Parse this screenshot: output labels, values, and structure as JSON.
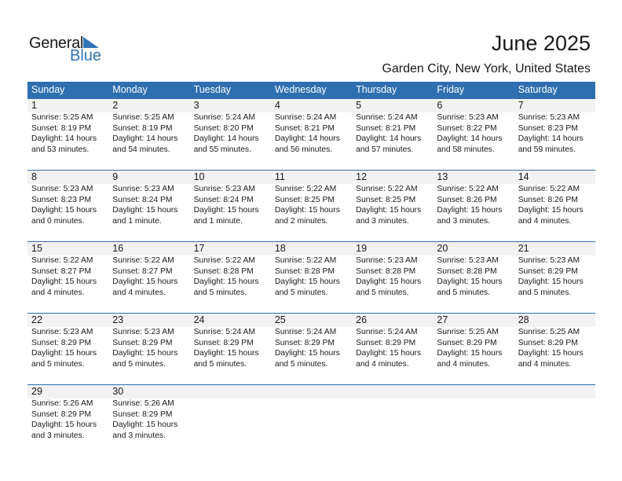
{
  "logo": {
    "word1": "General",
    "word2": "Blue"
  },
  "header": {
    "title": "June 2025",
    "location": "Garden City, New York, United States"
  },
  "colors": {
    "accent": "#2e6fb0",
    "band": "#f2f2f2"
  },
  "weekdays": [
    "Sunday",
    "Monday",
    "Tuesday",
    "Wednesday",
    "Thursday",
    "Friday",
    "Saturday"
  ],
  "weeks": [
    [
      {
        "day": "1",
        "sunrise": "Sunrise: 5:25 AM",
        "sunset": "Sunset: 8:19 PM",
        "daylight": "Daylight: 14 hours",
        "minutes": "and 53 minutes."
      },
      {
        "day": "2",
        "sunrise": "Sunrise: 5:25 AM",
        "sunset": "Sunset: 8:19 PM",
        "daylight": "Daylight: 14 hours",
        "minutes": "and 54 minutes."
      },
      {
        "day": "3",
        "sunrise": "Sunrise: 5:24 AM",
        "sunset": "Sunset: 8:20 PM",
        "daylight": "Daylight: 14 hours",
        "minutes": "and 55 minutes."
      },
      {
        "day": "4",
        "sunrise": "Sunrise: 5:24 AM",
        "sunset": "Sunset: 8:21 PM",
        "daylight": "Daylight: 14 hours",
        "minutes": "and 56 minutes."
      },
      {
        "day": "5",
        "sunrise": "Sunrise: 5:24 AM",
        "sunset": "Sunset: 8:21 PM",
        "daylight": "Daylight: 14 hours",
        "minutes": "and 57 minutes."
      },
      {
        "day": "6",
        "sunrise": "Sunrise: 5:23 AM",
        "sunset": "Sunset: 8:22 PM",
        "daylight": "Daylight: 14 hours",
        "minutes": "and 58 minutes."
      },
      {
        "day": "7",
        "sunrise": "Sunrise: 5:23 AM",
        "sunset": "Sunset: 8:23 PM",
        "daylight": "Daylight: 14 hours",
        "minutes": "and 59 minutes."
      }
    ],
    [
      {
        "day": "8",
        "sunrise": "Sunrise: 5:23 AM",
        "sunset": "Sunset: 8:23 PM",
        "daylight": "Daylight: 15 hours",
        "minutes": "and 0 minutes."
      },
      {
        "day": "9",
        "sunrise": "Sunrise: 5:23 AM",
        "sunset": "Sunset: 8:24 PM",
        "daylight": "Daylight: 15 hours",
        "minutes": "and 1 minute."
      },
      {
        "day": "10",
        "sunrise": "Sunrise: 5:23 AM",
        "sunset": "Sunset: 8:24 PM",
        "daylight": "Daylight: 15 hours",
        "minutes": "and 1 minute."
      },
      {
        "day": "11",
        "sunrise": "Sunrise: 5:22 AM",
        "sunset": "Sunset: 8:25 PM",
        "daylight": "Daylight: 15 hours",
        "minutes": "and 2 minutes."
      },
      {
        "day": "12",
        "sunrise": "Sunrise: 5:22 AM",
        "sunset": "Sunset: 8:25 PM",
        "daylight": "Daylight: 15 hours",
        "minutes": "and 3 minutes."
      },
      {
        "day": "13",
        "sunrise": "Sunrise: 5:22 AM",
        "sunset": "Sunset: 8:26 PM",
        "daylight": "Daylight: 15 hours",
        "minutes": "and 3 minutes."
      },
      {
        "day": "14",
        "sunrise": "Sunrise: 5:22 AM",
        "sunset": "Sunset: 8:26 PM",
        "daylight": "Daylight: 15 hours",
        "minutes": "and 4 minutes."
      }
    ],
    [
      {
        "day": "15",
        "sunrise": "Sunrise: 5:22 AM",
        "sunset": "Sunset: 8:27 PM",
        "daylight": "Daylight: 15 hours",
        "minutes": "and 4 minutes."
      },
      {
        "day": "16",
        "sunrise": "Sunrise: 5:22 AM",
        "sunset": "Sunset: 8:27 PM",
        "daylight": "Daylight: 15 hours",
        "minutes": "and 4 minutes."
      },
      {
        "day": "17",
        "sunrise": "Sunrise: 5:22 AM",
        "sunset": "Sunset: 8:28 PM",
        "daylight": "Daylight: 15 hours",
        "minutes": "and 5 minutes."
      },
      {
        "day": "18",
        "sunrise": "Sunrise: 5:22 AM",
        "sunset": "Sunset: 8:28 PM",
        "daylight": "Daylight: 15 hours",
        "minutes": "and 5 minutes."
      },
      {
        "day": "19",
        "sunrise": "Sunrise: 5:23 AM",
        "sunset": "Sunset: 8:28 PM",
        "daylight": "Daylight: 15 hours",
        "minutes": "and 5 minutes."
      },
      {
        "day": "20",
        "sunrise": "Sunrise: 5:23 AM",
        "sunset": "Sunset: 8:28 PM",
        "daylight": "Daylight: 15 hours",
        "minutes": "and 5 minutes."
      },
      {
        "day": "21",
        "sunrise": "Sunrise: 5:23 AM",
        "sunset": "Sunset: 8:29 PM",
        "daylight": "Daylight: 15 hours",
        "minutes": "and 5 minutes."
      }
    ],
    [
      {
        "day": "22",
        "sunrise": "Sunrise: 5:23 AM",
        "sunset": "Sunset: 8:29 PM",
        "daylight": "Daylight: 15 hours",
        "minutes": "and 5 minutes."
      },
      {
        "day": "23",
        "sunrise": "Sunrise: 5:23 AM",
        "sunset": "Sunset: 8:29 PM",
        "daylight": "Daylight: 15 hours",
        "minutes": "and 5 minutes."
      },
      {
        "day": "24",
        "sunrise": "Sunrise: 5:24 AM",
        "sunset": "Sunset: 8:29 PM",
        "daylight": "Daylight: 15 hours",
        "minutes": "and 5 minutes."
      },
      {
        "day": "25",
        "sunrise": "Sunrise: 5:24 AM",
        "sunset": "Sunset: 8:29 PM",
        "daylight": "Daylight: 15 hours",
        "minutes": "and 5 minutes."
      },
      {
        "day": "26",
        "sunrise": "Sunrise: 5:24 AM",
        "sunset": "Sunset: 8:29 PM",
        "daylight": "Daylight: 15 hours",
        "minutes": "and 4 minutes."
      },
      {
        "day": "27",
        "sunrise": "Sunrise: 5:25 AM",
        "sunset": "Sunset: 8:29 PM",
        "daylight": "Daylight: 15 hours",
        "minutes": "and 4 minutes."
      },
      {
        "day": "28",
        "sunrise": "Sunrise: 5:25 AM",
        "sunset": "Sunset: 8:29 PM",
        "daylight": "Daylight: 15 hours",
        "minutes": "and 4 minutes."
      }
    ],
    [
      {
        "day": "29",
        "sunrise": "Sunrise: 5:26 AM",
        "sunset": "Sunset: 8:29 PM",
        "daylight": "Daylight: 15 hours",
        "minutes": "and 3 minutes."
      },
      {
        "day": "30",
        "sunrise": "Sunrise: 5:26 AM",
        "sunset": "Sunset: 8:29 PM",
        "daylight": "Daylight: 15 hours",
        "minutes": "and 3 minutes."
      }
    ]
  ]
}
